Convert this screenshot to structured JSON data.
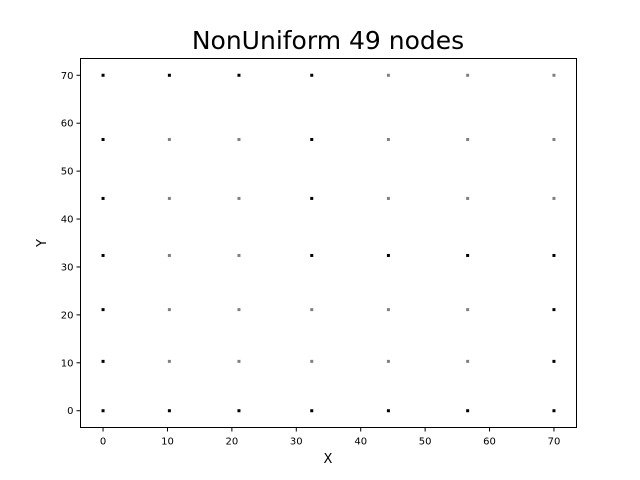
{
  "chart_data": {
    "type": "scatter",
    "title": "NonUniform 49 nodes",
    "xlabel": "X",
    "ylabel": "Y",
    "xlim": [
      -3.5,
      73.5
    ],
    "ylim": [
      -3.5,
      73.5
    ],
    "xticks": [
      0,
      10,
      20,
      30,
      40,
      50,
      60,
      70
    ],
    "yticks": [
      0,
      10,
      20,
      30,
      40,
      50,
      60,
      70
    ],
    "grid": false,
    "legend": "none",
    "colors": {
      "boundary": "#000000",
      "interior": "#808080"
    },
    "series": [
      {
        "kind": "boundary",
        "x": [
          0,
          10.3,
          21.1,
          32.4,
          44.3,
          56.6,
          70,
          0,
          70,
          0,
          70,
          0,
          32.4,
          44.3,
          56.6,
          70,
          0,
          32.4,
          0,
          32.4,
          0,
          10.3,
          21.1,
          32.4
        ],
        "y": [
          0,
          0,
          0,
          0,
          0,
          0,
          0,
          10.3,
          10.3,
          21.1,
          21.1,
          32.4,
          32.4,
          32.4,
          32.4,
          32.4,
          44.3,
          44.3,
          56.6,
          56.6,
          70,
          70,
          70,
          70
        ]
      },
      {
        "kind": "interior",
        "x": [
          10.3,
          21.1,
          32.4,
          44.3,
          56.6,
          10.3,
          21.1,
          32.4,
          44.3,
          56.6,
          10.3,
          21.1,
          10.3,
          21.1,
          44.3,
          56.6,
          70,
          10.3,
          21.1,
          44.3,
          56.6,
          70,
          44.3,
          56.6,
          70
        ],
        "y": [
          10.3,
          10.3,
          10.3,
          10.3,
          10.3,
          21.1,
          21.1,
          21.1,
          21.1,
          21.1,
          32.4,
          32.4,
          44.3,
          44.3,
          44.3,
          44.3,
          44.3,
          56.6,
          56.6,
          56.6,
          56.6,
          56.6,
          70,
          70,
          70
        ]
      }
    ]
  }
}
